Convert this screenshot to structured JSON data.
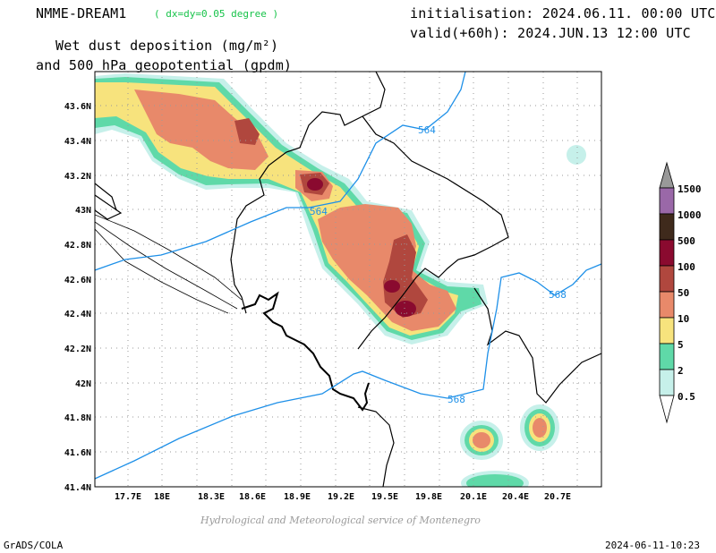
{
  "header": {
    "model": "NMME-DREAM1",
    "resolution": "( dx=dy=0.05 degree )",
    "init_label": "initialisation: 2024.06.11. 00:00 UTC",
    "valid_label": "valid(+60h): 2024.JUN.13 12:00 UTC",
    "field_line1": "Wet dust deposition (mg/m²)",
    "field_line2": "and 500 hPa geopotential (gpdm)"
  },
  "map": {
    "lon_ticks": [
      "17.7E",
      "18E",
      "18.3E",
      "18.6E",
      "18.9E",
      "19.2E",
      "19.5E",
      "19.8E",
      "20.1E",
      "20.4E",
      "20.7E"
    ],
    "lat_ticks": [
      "43.6N",
      "43.4N",
      "43.2N",
      "43N",
      "42.8N",
      "42.6N",
      "42.4N",
      "42.2N",
      "42N",
      "41.8N",
      "41.6N",
      "41.4N"
    ],
    "contour_labels": [
      "564",
      "564",
      "568",
      "568"
    ]
  },
  "colorbar": {
    "levels": [
      "1500",
      "1000",
      "500",
      "100",
      "50",
      "10",
      "5",
      "2",
      "0.5"
    ],
    "colors": [
      "#999999",
      "#9a68a8",
      "#3f2a1c",
      "#8a0a2f",
      "#b0473e",
      "#e8896a",
      "#f7e37d",
      "#5fd9a8",
      "#c6f0ea"
    ]
  },
  "colors": {
    "geopotential_contour": "#1e90e8",
    "border": "#000000",
    "gridline": "#999999"
  },
  "credit": "Hydrological and Meteorological service of Montenegro",
  "footer": {
    "left": "GrADS/COLA",
    "right": "2024-06-11-10:23"
  }
}
